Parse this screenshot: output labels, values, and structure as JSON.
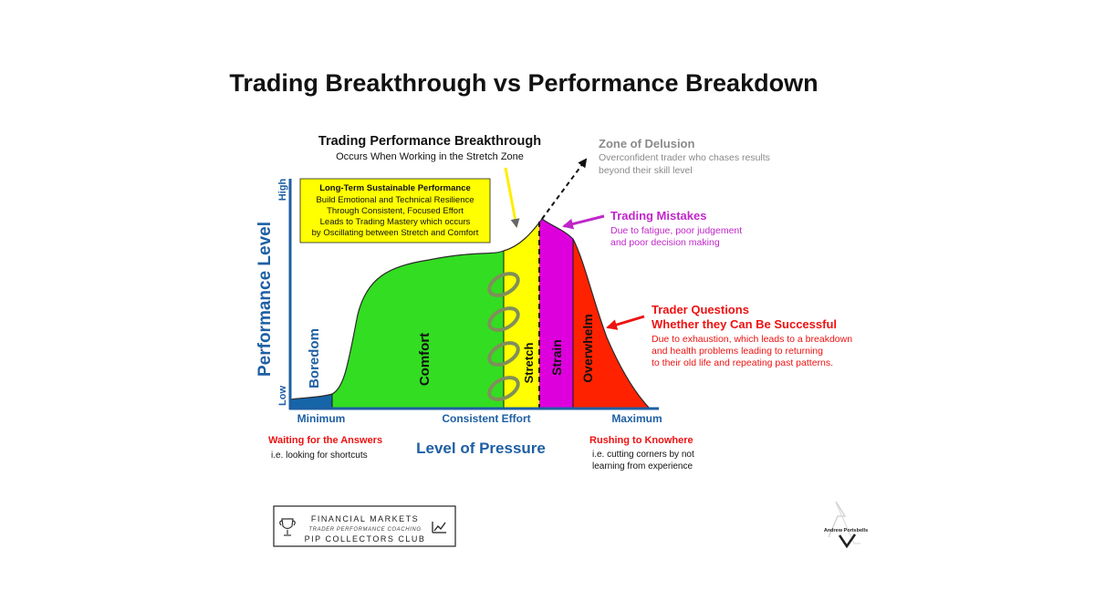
{
  "title": "Trading Breakthrough vs Performance Breakdown",
  "breakthrough": {
    "title": "Trading Performance Breakthrough",
    "subtitle": "Occurs When Working in the Stretch Zone"
  },
  "yellow_box": {
    "title": "Long-Term Sustainable Performance",
    "lines": [
      "Build Emotional and Technical Resilience",
      "Through Consistent, Focused Effort",
      "Leads to Trading Mastery which occurs",
      "by Oscillating between Stretch and Comfort"
    ]
  },
  "delusion": {
    "title": "Zone of Delusion",
    "lines": [
      "Overconfident trader who chases results",
      "beyond their skill level"
    ]
  },
  "mistakes": {
    "title": "Trading Mistakes",
    "lines": [
      "Due to fatigue, poor judgement",
      "and poor decision making"
    ]
  },
  "questions": {
    "title_lines": [
      "Trader Questions",
      "Whether they Can Be Successful"
    ],
    "lines": [
      "Due to exhaustion, which leads to a breakdown",
      "and health problems leading to returning",
      "to their old life and repeating past patterns."
    ]
  },
  "axes": {
    "y_label": "Performance Level",
    "y_high": "High",
    "y_low": "Low",
    "x_label": "Level of Pressure",
    "x_min": "Minimum",
    "x_mid": "Consistent Effort",
    "x_max": "Maximum"
  },
  "zones": {
    "boredom": "Boredom",
    "comfort": "Comfort",
    "stretch": "Stretch",
    "strain": "Strain",
    "overwhelm": "Overwhelm"
  },
  "colors": {
    "boredom": "#1565a8",
    "comfort": "#33dd22",
    "stretch": "#ffff00",
    "strain": "#dd00dd",
    "overwhelm": "#ff2200",
    "axis_blue": "#1e5fa3",
    "red": "#ee1111",
    "purple": "#c026c9",
    "gray": "#8a8a8a"
  },
  "waiting": {
    "title": "Waiting for the Answers",
    "line": "i.e. looking for shortcuts"
  },
  "rushing": {
    "title": "Rushing to Knowhere",
    "lines": [
      "i.e. cutting corners by not",
      "learning from experience"
    ]
  },
  "logo": {
    "line1": "FINANCIAL MARKETS",
    "line2": "TRADER PERFORMANCE COACHING",
    "line3": "PIP COLLECTORS CLUB"
  },
  "signature": "Andrew Portsbells"
}
